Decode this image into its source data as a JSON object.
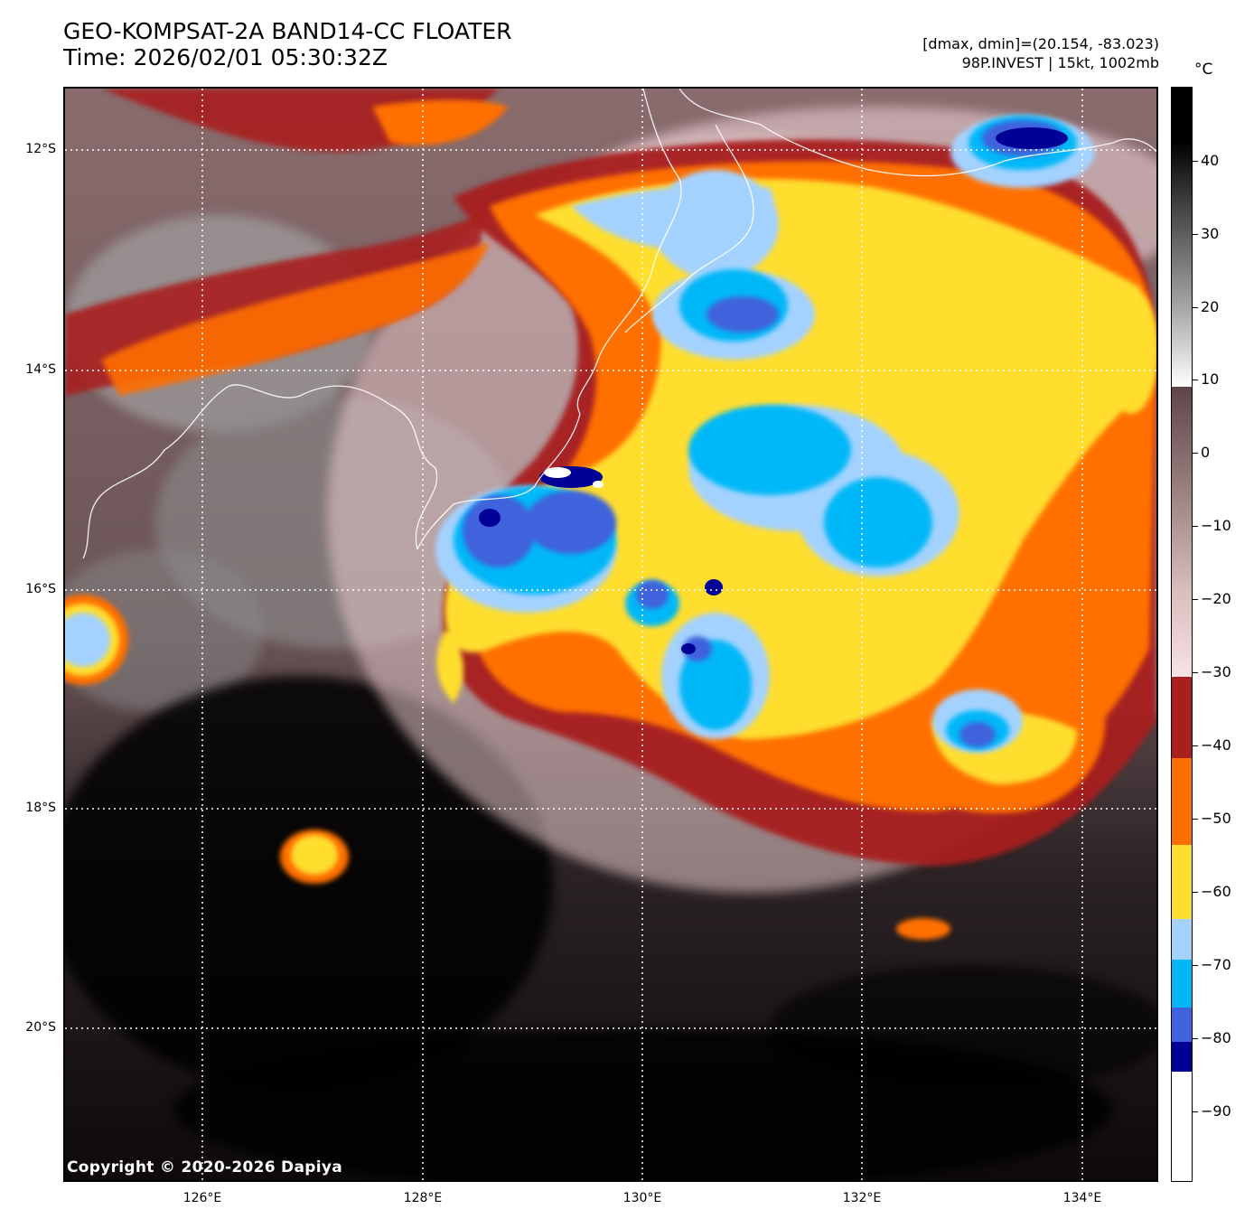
{
  "header": {
    "title_line1": "GEO-KOMPSAT-2A BAND14-CC FLOATER",
    "title_line2": "Time: 2026/02/01 05:30:32Z",
    "meta_line1": "[dmax, dmin]=(20.154, -83.023)",
    "meta_line2": "98P.INVEST | 15kt, 1002mb"
  },
  "colorbar": {
    "unit": "°C",
    "ticks": [
      "40",
      "30",
      "20",
      "10",
      "0",
      "−10",
      "−20",
      "−30",
      "−40",
      "−50",
      "−60",
      "−70",
      "−80",
      "−90"
    ],
    "colors": {
      "black": "#000000",
      "white": "#ffffff",
      "warm_brown": "#6e5052",
      "pink": "#f3dadc",
      "dark_red": "#a8201e",
      "orange": "#ff6f00",
      "yellow": "#ffde2e",
      "light_blue": "#a4d2ff",
      "cyan": "#00b8f7",
      "royal_blue": "#4062dc",
      "navy": "#000096",
      "cold_white": "#ffffff"
    }
  },
  "map": {
    "lat_labels": [
      "12°S",
      "14°S",
      "16°S",
      "18°S",
      "20°S"
    ],
    "lon_labels": [
      "126°E",
      "128°E",
      "130°E",
      "132°E",
      "134°E"
    ],
    "copyright": "Copyright © 2020-2026 Dapiya"
  }
}
